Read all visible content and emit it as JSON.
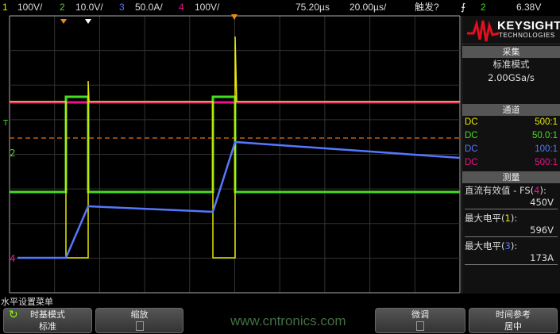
{
  "status_bar": {
    "channels": [
      {
        "num": "1",
        "scale": "100V/",
        "color": "#e8e800"
      },
      {
        "num": "2",
        "scale": "10.0V/",
        "color": "#44dd22"
      },
      {
        "num": "3",
        "scale": "50.0A/",
        "color": "#5577ff"
      },
      {
        "num": "4",
        "scale": "100V/",
        "color": "#ee1188"
      }
    ],
    "delay": "75.20µs",
    "timebase": "20.00µs/",
    "trigger_status": "触发?",
    "trigger_icon": "rising-edge-icon",
    "trigger_source": "2",
    "trigger_level": "6.38V"
  },
  "markers": {
    "trigger": "T",
    "ch2": "2",
    "ch4": "4"
  },
  "waveforms": {
    "time_div_us": 20,
    "ch1_V": {
      "low": 0,
      "high": 450,
      "spikes": [
        540,
        596
      ]
    },
    "ch2_V": {
      "low": 0,
      "high": 28
    },
    "ch3_A": {
      "start": 0,
      "pulse1_peak": 155,
      "pulse2_peak": 173,
      "end": 150
    },
    "ch4_V": 450,
    "trigger_level_line_color": "#c06010"
  },
  "side_panel": {
    "brand": "KEYSIGHT",
    "brand_sub": "TECHNOLOGIES",
    "acquire_title": "采集",
    "acquire_mode": "标准模式",
    "sample_rate": "2.00GSa/s",
    "channel_title": "通道",
    "channels": [
      {
        "coupling": "DC",
        "probe": "500:1",
        "color": "#e8e800"
      },
      {
        "coupling": "DC",
        "probe": "50.0:1",
        "color": "#44dd22"
      },
      {
        "coupling": "DC",
        "probe": "100:1",
        "color": "#5577ff"
      },
      {
        "coupling": "DC",
        "probe": "500:1",
        "color": "#ee1188"
      }
    ],
    "measure_title": "测量",
    "measurements": [
      {
        "label": "直流有效值 - FS(",
        "ch": "4",
        "close": "):",
        "value": "450V",
        "color": "#ee1188"
      },
      {
        "label": "最大电平(",
        "ch": "1",
        "close": "):",
        "value": "596V",
        "color": "#e8e800"
      },
      {
        "label": "最大电平(",
        "ch": "3",
        "close": "):",
        "value": "173A",
        "color": "#5577ff"
      }
    ]
  },
  "menu": {
    "title": "水平设置菜单",
    "buttons": [
      {
        "label": "时基模式",
        "value": "标准"
      },
      {
        "label": "缩放",
        "value": ""
      },
      {
        "label": "微调",
        "value": ""
      },
      {
        "label": "时间参考",
        "value": "居中"
      }
    ]
  },
  "watermark": "www.cntronics.com"
}
